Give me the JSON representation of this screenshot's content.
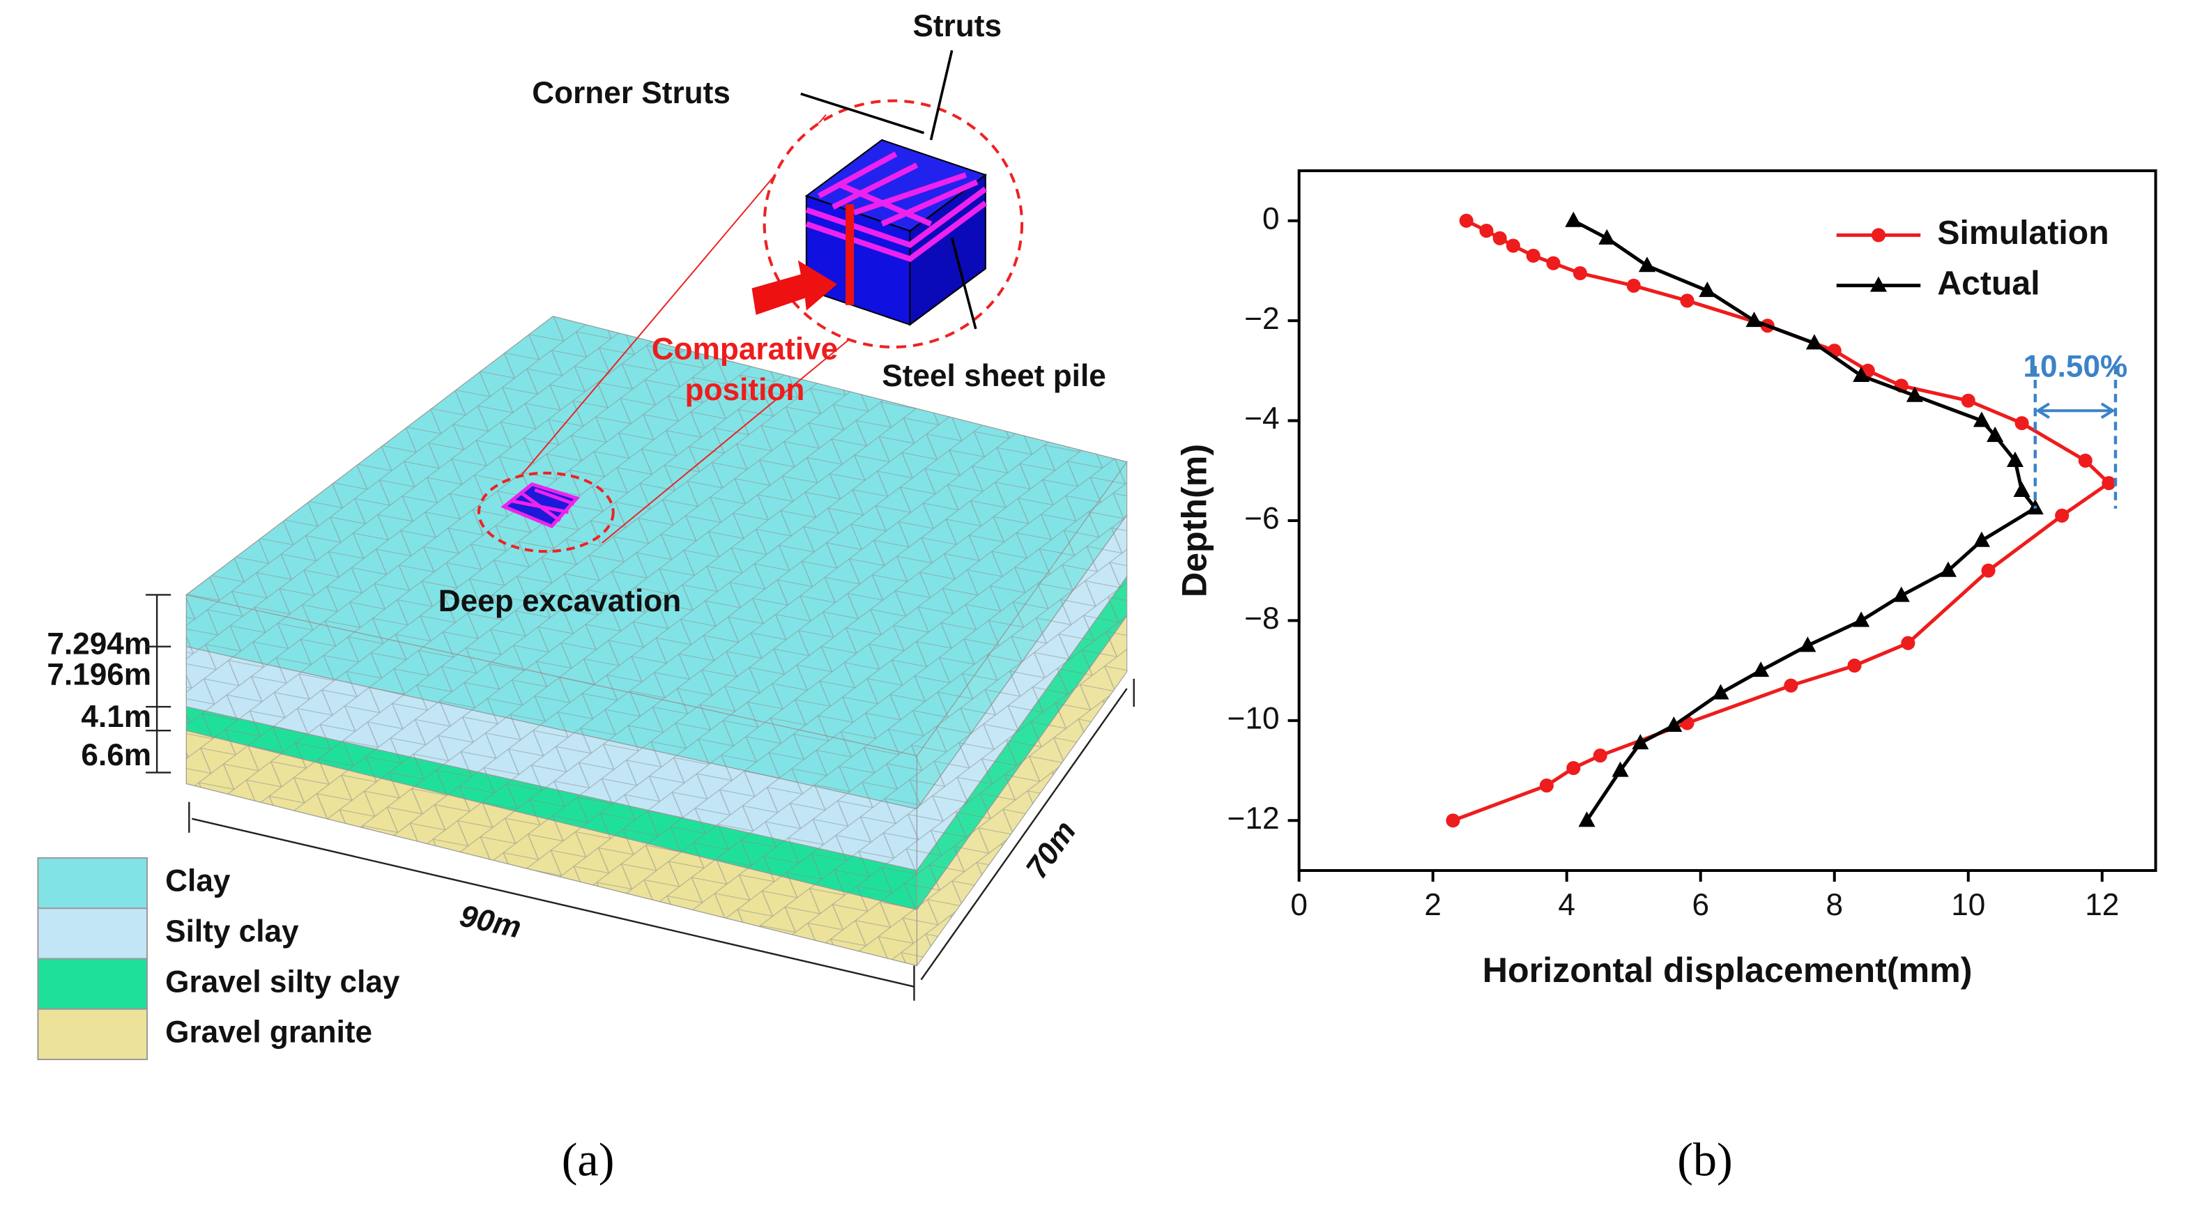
{
  "diagram": {
    "labels": {
      "corner_struts": "Corner Struts",
      "struts": "Struts",
      "comparative": "Comparative",
      "position": "position",
      "steel_sheet_pile": "Steel sheet pile",
      "deep_excavation": "Deep excavation"
    },
    "layers": [
      {
        "name": "Clay",
        "color": "#82e3e6",
        "thickness": "7.294m"
      },
      {
        "name": "Silty clay",
        "color": "#c2e6f6",
        "thickness": "7.196m"
      },
      {
        "name": "Gravel silty clay",
        "color": "#1fe09a",
        "thickness": "4.1m"
      },
      {
        "name": "Gravel granite",
        "color": "#ece29a",
        "thickness": "6.6m"
      }
    ],
    "dimensions": {
      "length": "90m",
      "width": "70m"
    },
    "captions": [
      "(a)",
      "(b)"
    ]
  },
  "chart_data": {
    "type": "line",
    "xlabel": "Horizontal displacement(mm)",
    "ylabel": "Depth(m)",
    "xlim": [
      0,
      12.8
    ],
    "ylim": [
      -13,
      1
    ],
    "xticks": [
      0,
      2,
      4,
      6,
      8,
      10,
      12
    ],
    "yticks": [
      0,
      {
        "value": -2,
        "label": "−2"
      },
      {
        "value": -4,
        "label": "−4"
      },
      {
        "value": -6,
        "label": "−6"
      },
      {
        "value": -8,
        "label": "−8"
      },
      {
        "value": -10,
        "label": "−10"
      },
      {
        "value": -12,
        "label": "−12"
      }
    ],
    "legend": "upper right",
    "series": [
      {
        "name": "Simulation",
        "color": "#ee1c1c",
        "marker": "circle",
        "x": [
          2.5,
          2.8,
          3.0,
          3.2,
          3.5,
          3.8,
          4.2,
          5.0,
          5.8,
          7.0,
          8.0,
          8.5,
          9.0,
          10.0,
          10.8,
          11.75,
          12.1,
          11.4,
          10.3,
          9.1,
          8.3,
          7.35,
          5.8,
          4.5,
          4.1,
          3.7,
          2.3
        ],
        "values": [
          0,
          -0.2,
          -0.35,
          -0.5,
          -0.7,
          -0.85,
          -1.05,
          -1.3,
          -1.6,
          -2.1,
          -2.6,
          -3.0,
          -3.3,
          -3.6,
          -4.05,
          -4.8,
          -5.25,
          -5.9,
          -7.0,
          -8.45,
          -8.9,
          -9.3,
          -10.05,
          -10.7,
          -10.95,
          -11.3,
          -12
        ]
      },
      {
        "name": "Actual",
        "color": "#000000",
        "marker": "triangle",
        "x": [
          4.1,
          4.6,
          5.2,
          6.1,
          6.8,
          7.7,
          8.4,
          9.2,
          10.2,
          10.4,
          10.7,
          10.8,
          11.0,
          10.2,
          9.7,
          9.0,
          8.4,
          7.6,
          6.9,
          6.3,
          5.6,
          5.1,
          4.8,
          4.3
        ],
        "values": [
          0,
          -0.35,
          -0.9,
          -1.4,
          -2.0,
          -2.45,
          -3.1,
          -3.5,
          -4.0,
          -4.3,
          -4.8,
          -5.4,
          -5.75,
          -6.4,
          -7.0,
          -7.5,
          -8.0,
          -8.5,
          -9.0,
          -9.45,
          -10.1,
          -10.45,
          -11.0,
          -12
        ]
      }
    ],
    "annotation": {
      "text": "10.50%",
      "x": [
        11.0,
        12.2
      ],
      "y": -3.8,
      "color": "#3c82c8"
    }
  }
}
